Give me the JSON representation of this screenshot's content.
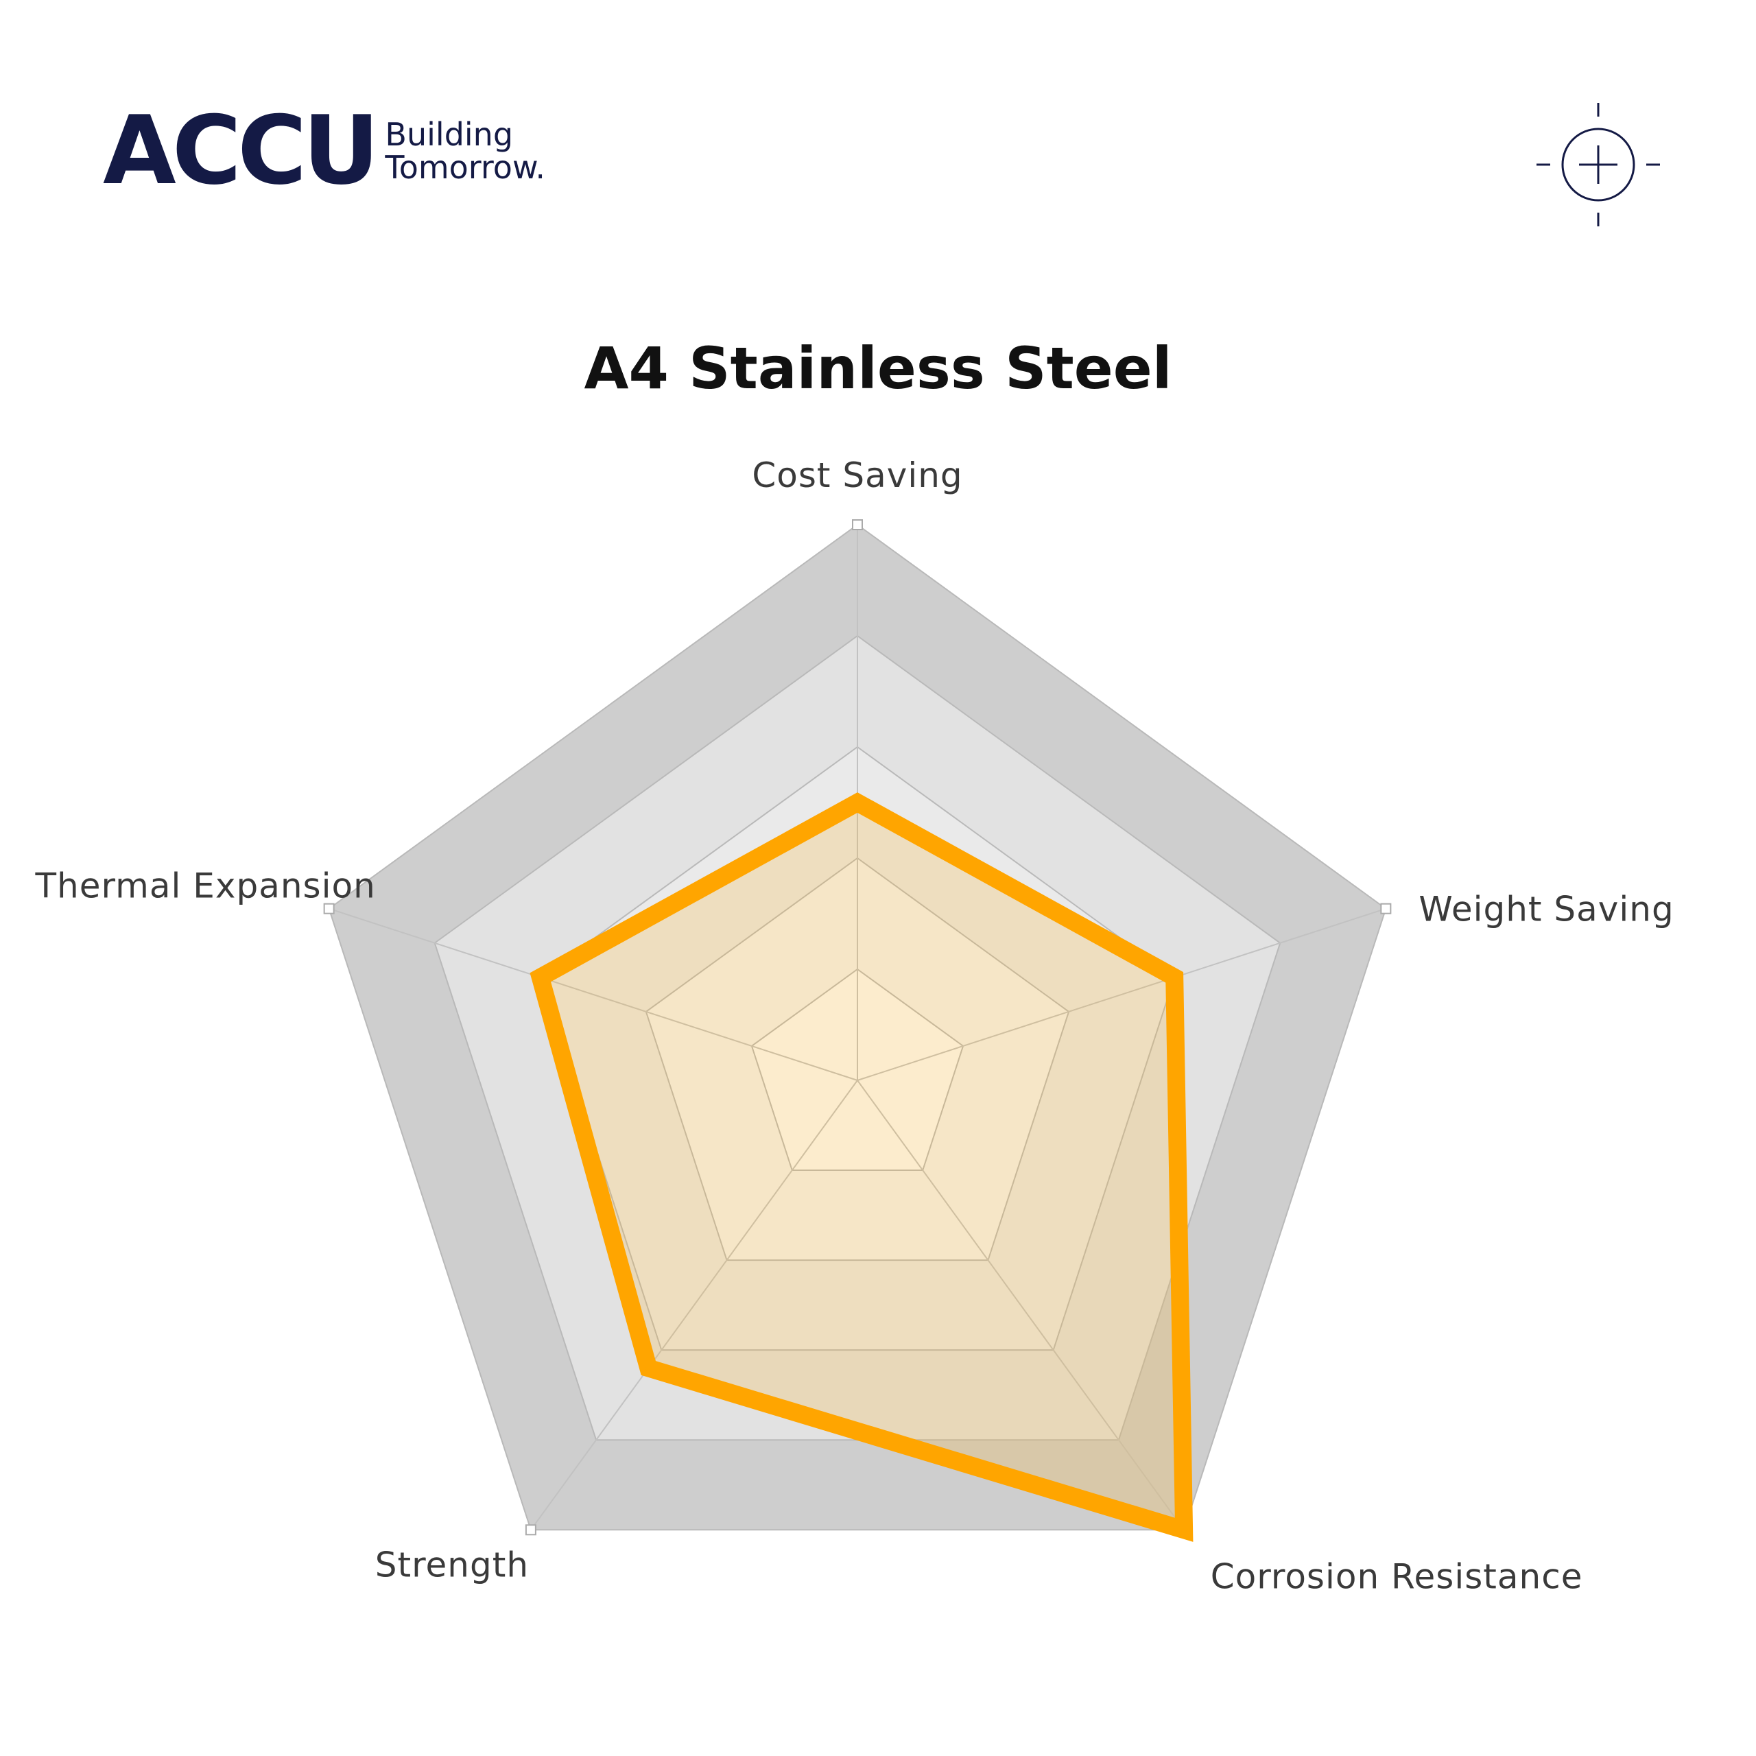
{
  "logo": {
    "word": "ACCU",
    "tagline_line1": "Building",
    "tagline_line2": "Tomorrow.",
    "brand_color": "#141a45"
  },
  "crosshair": {
    "icon": "crosshair-icon"
  },
  "chart_data": {
    "type": "radar",
    "title": "A4 Stainless Steel",
    "axes": [
      "Cost Saving",
      "Weight Saving",
      "Corrosion Resistance",
      "Strength",
      "Thermal Expansion"
    ],
    "axis_label_lines": [
      [
        "Cost Saving"
      ],
      [
        "Weight Saving"
      ],
      [
        "Corrosion Resistance"
      ],
      [
        "Strength"
      ],
      [
        "Thermal Expansion"
      ]
    ],
    "range": [
      0,
      5
    ],
    "rings": 5,
    "values": [
      2.5,
      3,
      5,
      3.2,
      3
    ],
    "colors": {
      "series_stroke": "#ffa500",
      "series_fill": "rgba(255,180,40,0.22)",
      "ring_fills": [
        "#cecece",
        "#e2e2e2",
        "#eaeaea",
        "#f4f4f4",
        "#fbfbfb"
      ],
      "inner_fill": "#fff2d6"
    }
  }
}
